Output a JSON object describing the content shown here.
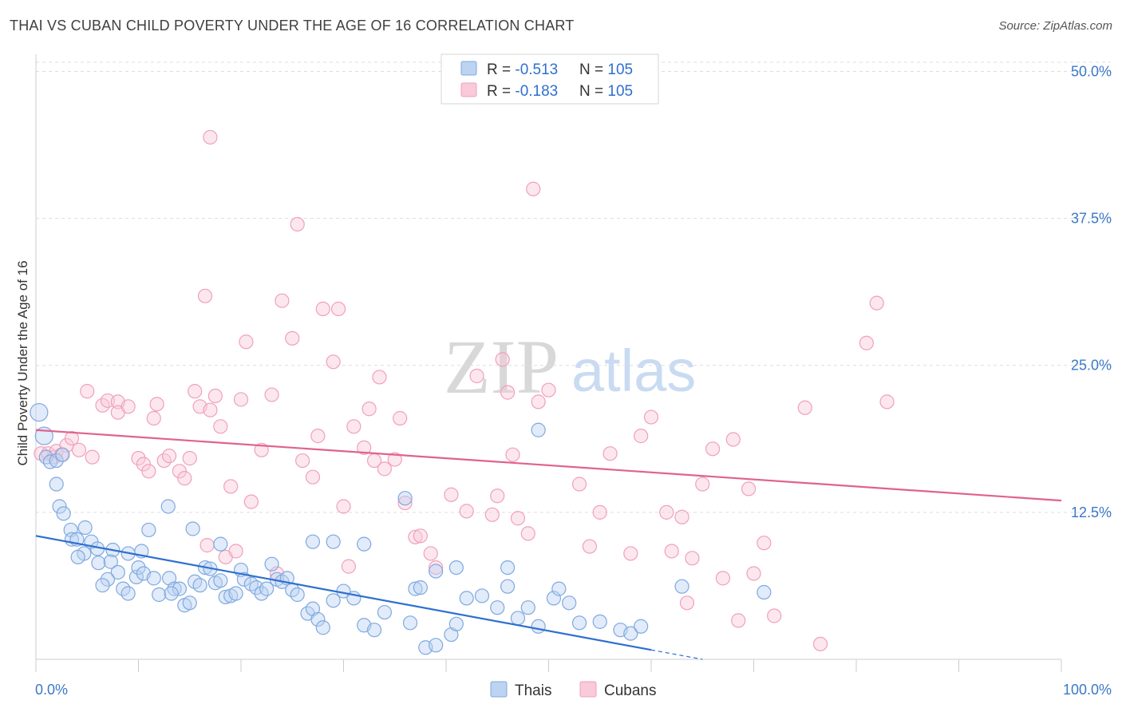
{
  "header": {
    "title": "THAI VS CUBAN CHILD POVERTY UNDER THE AGE OF 16 CORRELATION CHART",
    "source": "Source: ZipAtlas.com"
  },
  "watermark": {
    "zip": "ZIP",
    "atlas": "atlas"
  },
  "legend_box": {
    "rows": [
      {
        "r_label": "R = ",
        "r_value": "-0.513",
        "n_label": "N = ",
        "n_value": "105",
        "color": "#7fa9e0"
      },
      {
        "r_label": "R = ",
        "r_value": "-0.183",
        "n_label": "N = ",
        "n_value": "105",
        "color": "#f0a0bb"
      }
    ]
  },
  "bottom_legend": [
    {
      "label": "Thais",
      "color": "#7fa9e0"
    },
    {
      "label": "Cubans",
      "color": "#f0a0bb"
    }
  ],
  "chart_data": {
    "type": "scatter",
    "title": "THAI VS CUBAN CHILD POVERTY UNDER THE AGE OF 16 CORRELATION CHART",
    "xlabel": "",
    "ylabel": "Child Poverty Under the Age of 16",
    "xlim": [
      0,
      100
    ],
    "ylim": [
      0,
      52
    ],
    "x_tick_labels": [
      "0.0%",
      "100.0%"
    ],
    "y_ticks": [
      12.5,
      25.0,
      37.5,
      50.0
    ],
    "y_tick_labels": [
      "12.5%",
      "25.0%",
      "37.5%",
      "50.0%"
    ],
    "grid": true,
    "legend_position": "top-center",
    "series": [
      {
        "name": "Thais",
        "color": "#7fa9e0",
        "line_color": "#2f6fd0",
        "trend": {
          "x": [
            0,
            60
          ],
          "y": [
            10.5,
            0.8
          ]
        },
        "trend_dashed": {
          "x": [
            60,
            65
          ],
          "y": [
            0.8,
            0.0
          ]
        },
        "points": [
          [
            0.3,
            21.0
          ],
          [
            0.8,
            19.0
          ],
          [
            1.0,
            17.2
          ],
          [
            1.4,
            16.8
          ],
          [
            2.0,
            16.9
          ],
          [
            2.6,
            17.4
          ],
          [
            2.0,
            14.9
          ],
          [
            2.3,
            13.0
          ],
          [
            2.7,
            12.4
          ],
          [
            3.4,
            11.0
          ],
          [
            4.8,
            11.2
          ],
          [
            3.5,
            10.2
          ],
          [
            4.0,
            10.2
          ],
          [
            5.4,
            10.0
          ],
          [
            4.7,
            9.0
          ],
          [
            6.0,
            9.4
          ],
          [
            7.5,
            9.3
          ],
          [
            9.0,
            9.0
          ],
          [
            10.3,
            9.2
          ],
          [
            11.0,
            11.0
          ],
          [
            4.1,
            8.7
          ],
          [
            6.1,
            8.2
          ],
          [
            7.3,
            8.3
          ],
          [
            8.0,
            7.4
          ],
          [
            9.8,
            7.0
          ],
          [
            7.0,
            6.8
          ],
          [
            6.5,
            6.3
          ],
          [
            8.5,
            6.0
          ],
          [
            9.0,
            5.6
          ],
          [
            10.0,
            7.8
          ],
          [
            10.5,
            7.3
          ],
          [
            11.5,
            6.9
          ],
          [
            12.0,
            5.5
          ],
          [
            13.0,
            6.9
          ],
          [
            13.5,
            6.0
          ],
          [
            14.0,
            6.0
          ],
          [
            13.2,
            5.6
          ],
          [
            14.5,
            4.6
          ],
          [
            15.0,
            4.8
          ],
          [
            15.5,
            6.6
          ],
          [
            16.0,
            6.3
          ],
          [
            16.5,
            7.8
          ],
          [
            17.0,
            7.7
          ],
          [
            17.5,
            6.5
          ],
          [
            18.0,
            6.7
          ],
          [
            18.5,
            5.3
          ],
          [
            19.0,
            5.4
          ],
          [
            19.5,
            5.6
          ],
          [
            20.0,
            7.6
          ],
          [
            20.3,
            6.8
          ],
          [
            21.0,
            6.4
          ],
          [
            21.5,
            6.1
          ],
          [
            22.0,
            5.6
          ],
          [
            22.5,
            6.0
          ],
          [
            23.0,
            8.1
          ],
          [
            23.5,
            6.8
          ],
          [
            24.0,
            6.6
          ],
          [
            24.5,
            6.9
          ],
          [
            25.0,
            5.9
          ],
          [
            25.5,
            5.5
          ],
          [
            26.5,
            3.9
          ],
          [
            27.0,
            4.3
          ],
          [
            27.5,
            3.4
          ],
          [
            28.0,
            2.7
          ],
          [
            29.0,
            5.0
          ],
          [
            30.0,
            5.8
          ],
          [
            31.0,
            5.2
          ],
          [
            32.0,
            2.9
          ],
          [
            33.0,
            2.5
          ],
          [
            34.0,
            4.0
          ],
          [
            36.5,
            3.1
          ],
          [
            37.0,
            6.0
          ],
          [
            37.5,
            6.1
          ],
          [
            38.0,
            1.0
          ],
          [
            39.0,
            1.2
          ],
          [
            40.5,
            2.1
          ],
          [
            41.0,
            3.0
          ],
          [
            42.0,
            5.2
          ],
          [
            43.5,
            5.4
          ],
          [
            45.0,
            4.4
          ],
          [
            46.0,
            6.2
          ],
          [
            47.0,
            3.5
          ],
          [
            48.0,
            4.4
          ],
          [
            49.0,
            2.8
          ],
          [
            50.5,
            5.2
          ],
          [
            51.0,
            6.0
          ],
          [
            52.0,
            4.8
          ],
          [
            53.0,
            3.1
          ],
          [
            55.0,
            3.2
          ],
          [
            57.0,
            2.5
          ],
          [
            58.0,
            2.2
          ],
          [
            59.0,
            2.8
          ],
          [
            63.0,
            6.2
          ],
          [
            71.0,
            5.7
          ],
          [
            12.9,
            13.0
          ],
          [
            15.3,
            11.1
          ],
          [
            18.0,
            9.8
          ],
          [
            27.0,
            10.0
          ],
          [
            29.0,
            10.0
          ],
          [
            32.0,
            9.8
          ],
          [
            36.0,
            13.7
          ],
          [
            39.0,
            7.5
          ],
          [
            41.0,
            7.8
          ],
          [
            46.0,
            7.8
          ],
          [
            49.0,
            19.5
          ]
        ]
      },
      {
        "name": "Cubans",
        "color": "#f0a0bb",
        "line_color": "#e0628f",
        "trend": {
          "x": [
            0,
            100
          ],
          "y": [
            19.5,
            13.5
          ]
        },
        "points": [
          [
            0.5,
            17.5
          ],
          [
            1.2,
            17.5
          ],
          [
            1.8,
            17.2
          ],
          [
            2.0,
            17.7
          ],
          [
            3.0,
            18.2
          ],
          [
            3.5,
            18.8
          ],
          [
            2.5,
            17.4
          ],
          [
            4.2,
            17.8
          ],
          [
            5.5,
            17.2
          ],
          [
            5.0,
            22.8
          ],
          [
            6.5,
            21.6
          ],
          [
            7.0,
            22.0
          ],
          [
            8.0,
            21.9
          ],
          [
            8.0,
            21.0
          ],
          [
            9.0,
            21.5
          ],
          [
            10.0,
            17.1
          ],
          [
            10.5,
            16.6
          ],
          [
            11.0,
            16.0
          ],
          [
            11.5,
            20.5
          ],
          [
            11.8,
            21.7
          ],
          [
            12.5,
            16.9
          ],
          [
            13.0,
            17.3
          ],
          [
            14.0,
            16.0
          ],
          [
            14.5,
            15.4
          ],
          [
            15.0,
            17.1
          ],
          [
            15.5,
            22.8
          ],
          [
            16.0,
            21.5
          ],
          [
            16.7,
            9.7
          ],
          [
            17.0,
            21.2
          ],
          [
            17.5,
            22.4
          ],
          [
            18.0,
            19.8
          ],
          [
            18.5,
            8.7
          ],
          [
            19.0,
            14.7
          ],
          [
            19.5,
            9.2
          ],
          [
            20.0,
            22.1
          ],
          [
            21.0,
            13.4
          ],
          [
            22.0,
            17.8
          ],
          [
            23.0,
            22.5
          ],
          [
            23.5,
            7.3
          ],
          [
            24.0,
            30.5
          ],
          [
            25.0,
            27.3
          ],
          [
            25.5,
            37.0
          ],
          [
            26.0,
            16.9
          ],
          [
            27.0,
            15.5
          ],
          [
            27.5,
            19.0
          ],
          [
            28.0,
            29.8
          ],
          [
            29.0,
            25.3
          ],
          [
            30.0,
            13.0
          ],
          [
            30.5,
            7.9
          ],
          [
            31.0,
            19.8
          ],
          [
            32.0,
            18.0
          ],
          [
            33.0,
            16.9
          ],
          [
            33.5,
            24.0
          ],
          [
            34.0,
            16.2
          ],
          [
            35.0,
            17.0
          ],
          [
            35.5,
            20.5
          ],
          [
            36.0,
            13.3
          ],
          [
            37.0,
            10.4
          ],
          [
            37.5,
            10.5
          ],
          [
            38.5,
            9.0
          ],
          [
            39.0,
            7.8
          ],
          [
            40.5,
            14.0
          ],
          [
            42.0,
            12.6
          ],
          [
            43.0,
            24.1
          ],
          [
            44.5,
            12.3
          ],
          [
            45.0,
            13.9
          ],
          [
            45.5,
            25.5
          ],
          [
            46.0,
            22.7
          ],
          [
            46.5,
            17.4
          ],
          [
            47.0,
            12.0
          ],
          [
            48.0,
            10.7
          ],
          [
            48.5,
            40.0
          ],
          [
            49.0,
            21.9
          ],
          [
            50.0,
            22.9
          ],
          [
            53.0,
            14.9
          ],
          [
            54.0,
            9.6
          ],
          [
            55.0,
            12.5
          ],
          [
            56.0,
            17.5
          ],
          [
            58.0,
            9.0
          ],
          [
            59.0,
            19.0
          ],
          [
            60.0,
            20.6
          ],
          [
            61.5,
            12.5
          ],
          [
            62.0,
            9.2
          ],
          [
            63.0,
            12.1
          ],
          [
            63.5,
            4.8
          ],
          [
            64.0,
            8.6
          ],
          [
            65.0,
            14.9
          ],
          [
            66.0,
            17.9
          ],
          [
            67.0,
            6.9
          ],
          [
            68.0,
            18.7
          ],
          [
            68.5,
            3.3
          ],
          [
            69.5,
            14.5
          ],
          [
            70.0,
            7.3
          ],
          [
            71.0,
            9.9
          ],
          [
            72.0,
            3.7
          ],
          [
            75.0,
            21.4
          ],
          [
            76.5,
            1.3
          ],
          [
            81.0,
            26.9
          ],
          [
            82.0,
            30.3
          ],
          [
            83.0,
            21.9
          ],
          [
            16.5,
            30.9
          ],
          [
            20.5,
            27.0
          ],
          [
            17.0,
            44.4
          ],
          [
            29.5,
            29.8
          ],
          [
            32.5,
            21.3
          ]
        ]
      }
    ]
  }
}
